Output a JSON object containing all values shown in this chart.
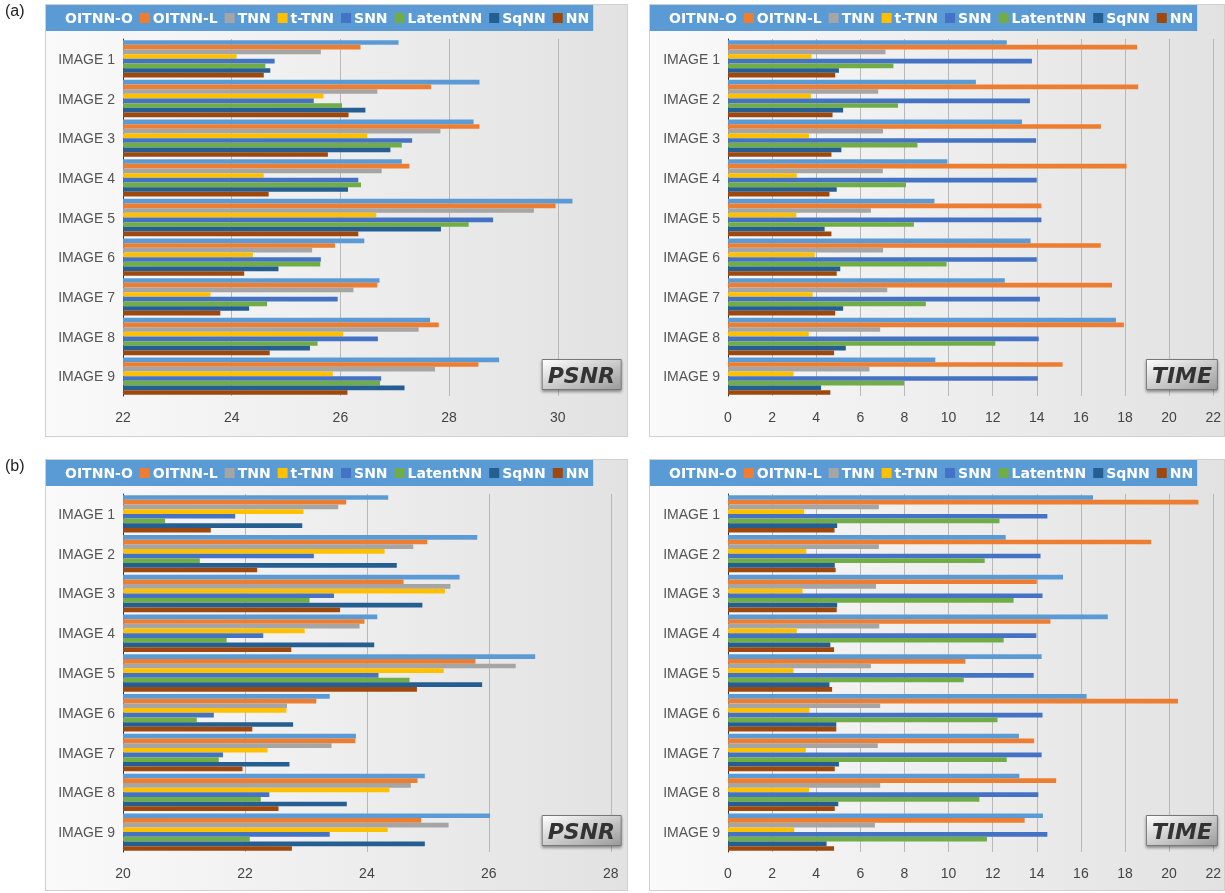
{
  "chart_data": [
    {
      "type": "bar",
      "orientation": "horizontal",
      "title": "PSNR",
      "annotations": [
        "(a)"
      ],
      "legend": "top",
      "grid": "x",
      "xlim": [
        22,
        31.2
      ],
      "xticks": [
        22,
        24,
        26,
        28,
        30
      ],
      "categories": [
        "IMAGE 1",
        "IMAGE 2",
        "IMAGE 3",
        "IMAGE 4",
        "IMAGE 5",
        "IMAGE 6",
        "IMAGE 7",
        "IMAGE 8",
        "IMAGE 9"
      ],
      "series": [
        {
          "name": "OITNN-O",
          "color": "#5b9bd5",
          "values": [
            27.07,
            28.56,
            28.45,
            27.13,
            30.27,
            26.44,
            26.72,
            27.65,
            28.92
          ]
        },
        {
          "name": "OITNN-L",
          "color": "#ed7d31",
          "values": [
            26.37,
            27.67,
            28.56,
            27.27,
            29.96,
            25.9,
            26.68,
            27.81,
            28.54
          ]
        },
        {
          "name": "TNN",
          "color": "#a5a5a5",
          "values": [
            25.64,
            26.68,
            27.84,
            26.76,
            29.56,
            25.48,
            26.24,
            27.44,
            27.74
          ]
        },
        {
          "name": "t-TNN",
          "color": "#ffc000",
          "values": [
            24.09,
            25.69,
            26.49,
            24.59,
            26.66,
            24.39,
            23.61,
            26.05,
            25.86
          ]
        },
        {
          "name": "SNN",
          "color": "#4472c4",
          "values": [
            24.79,
            25.51,
            27.32,
            26.33,
            28.81,
            25.64,
            25.95,
            26.69,
            26.75
          ]
        },
        {
          "name": "LatentNN",
          "color": "#70ad47",
          "values": [
            24.62,
            26.03,
            27.13,
            26.38,
            28.36,
            25.63,
            24.65,
            25.58,
            26.73
          ]
        },
        {
          "name": "SqNN",
          "color": "#255e91",
          "values": [
            24.71,
            26.46,
            26.92,
            26.14,
            27.85,
            24.86,
            24.32,
            25.44,
            27.18
          ]
        },
        {
          "name": "NN",
          "color": "#9e480e",
          "values": [
            24.59,
            26.15,
            25.77,
            24.68,
            26.33,
            24.23,
            23.79,
            24.7,
            26.13
          ]
        }
      ]
    },
    {
      "type": "bar",
      "orientation": "horizontal",
      "title": "TIME",
      "legend": "top",
      "grid": "x",
      "xlim": [
        0,
        22
      ],
      "xticks": [
        0,
        2,
        4,
        6,
        8,
        10,
        12,
        14,
        16,
        18,
        20,
        22
      ],
      "categories": [
        "IMAGE 1",
        "IMAGE 2",
        "IMAGE 3",
        "IMAGE 4",
        "IMAGE 5",
        "IMAGE 6",
        "IMAGE 7",
        "IMAGE 8",
        "IMAGE 9"
      ],
      "series": [
        {
          "name": "OITNN-O",
          "color": "#5b9bd5",
          "values": [
            12.64,
            11.24,
            13.33,
            9.95,
            9.36,
            13.72,
            12.55,
            17.59,
            9.4
          ]
        },
        {
          "name": "OITNN-L",
          "color": "#ed7d31",
          "values": [
            18.55,
            18.6,
            16.91,
            18.07,
            14.21,
            16.9,
            17.41,
            17.95,
            15.17
          ]
        },
        {
          "name": "TNN",
          "color": "#a5a5a5",
          "values": [
            7.14,
            6.81,
            7.03,
            7.02,
            6.48,
            7.03,
            7.22,
            6.9,
            6.41
          ]
        },
        {
          "name": "t-TNN",
          "color": "#ffc000",
          "values": [
            3.79,
            3.76,
            3.67,
            3.12,
            3.1,
            3.93,
            3.84,
            3.66,
            2.97
          ]
        },
        {
          "name": "SNN",
          "color": "#4472c4",
          "values": [
            13.78,
            13.69,
            13.97,
            14.0,
            14.21,
            14.0,
            14.14,
            14.09,
            14.05
          ]
        },
        {
          "name": "LatentNN",
          "color": "#70ad47",
          "values": [
            7.5,
            7.71,
            8.59,
            8.07,
            8.43,
            9.91,
            8.97,
            12.12,
            7.98
          ]
        },
        {
          "name": "SqNN",
          "color": "#255e91",
          "values": [
            5.03,
            5.22,
            5.14,
            4.93,
            4.38,
            5.09,
            5.22,
            5.34,
            4.22
          ]
        },
        {
          "name": "NN",
          "color": "#9e480e",
          "values": [
            4.86,
            4.74,
            4.69,
            4.6,
            4.69,
            4.93,
            4.86,
            4.81,
            4.64
          ]
        }
      ]
    },
    {
      "type": "bar",
      "orientation": "horizontal",
      "title": "PSNR",
      "annotations": [
        "(b)"
      ],
      "legend": "top",
      "grid": "x",
      "xlim": [
        20,
        28.2
      ],
      "xticks": [
        20,
        22,
        24,
        26,
        28
      ],
      "categories": [
        "IMAGE 1",
        "IMAGE 2",
        "IMAGE 3",
        "IMAGE 4",
        "IMAGE 5",
        "IMAGE 6",
        "IMAGE 7",
        "IMAGE 8",
        "IMAGE 9"
      ],
      "series": [
        {
          "name": "OITNN-O",
          "color": "#5b9bd5",
          "values": [
            24.35,
            25.81,
            25.52,
            24.17,
            26.76,
            23.39,
            23.82,
            24.95,
            26.02
          ]
        },
        {
          "name": "OITNN-L",
          "color": "#ed7d31",
          "values": [
            23.66,
            24.99,
            24.6,
            23.96,
            25.78,
            23.17,
            23.81,
            24.83,
            24.89
          ]
        },
        {
          "name": "TNN",
          "color": "#a5a5a5",
          "values": [
            23.53,
            24.76,
            25.37,
            23.88,
            26.44,
            22.69,
            23.42,
            24.72,
            25.34
          ]
        },
        {
          "name": "t-TNN",
          "color": "#ffc000",
          "values": [
            22.96,
            24.29,
            25.28,
            22.98,
            25.26,
            22.68,
            22.37,
            24.37,
            24.34
          ]
        },
        {
          "name": "SNN",
          "color": "#4472c4",
          "values": [
            21.84,
            23.13,
            23.46,
            22.3,
            24.19,
            21.49,
            21.64,
            22.4,
            23.39
          ]
        },
        {
          "name": "LatentNN",
          "color": "#70ad47",
          "values": [
            20.69,
            21.26,
            23.06,
            21.7,
            24.7,
            21.21,
            21.57,
            22.26,
            22.08
          ]
        },
        {
          "name": "SqNN",
          "color": "#255e91",
          "values": [
            22.94,
            24.49,
            24.91,
            24.12,
            25.89,
            22.79,
            22.73,
            23.67,
            24.95
          ]
        },
        {
          "name": "NN",
          "color": "#9e480e",
          "values": [
            21.44,
            22.2,
            23.56,
            22.76,
            24.82,
            22.12,
            21.96,
            22.55,
            22.77
          ]
        }
      ]
    },
    {
      "type": "bar",
      "orientation": "horizontal",
      "title": "TIME",
      "legend": "top",
      "grid": "x",
      "xlim": [
        0,
        22
      ],
      "xticks": [
        0,
        2,
        4,
        6,
        8,
        10,
        12,
        14,
        16,
        18,
        20,
        22
      ],
      "categories": [
        "IMAGE 1",
        "IMAGE 2",
        "IMAGE 3",
        "IMAGE 4",
        "IMAGE 5",
        "IMAGE 6",
        "IMAGE 7",
        "IMAGE 8",
        "IMAGE 9"
      ],
      "series": [
        {
          "name": "OITNN-O",
          "color": "#5b9bd5",
          "values": [
            16.55,
            12.59,
            15.19,
            17.22,
            14.22,
            16.26,
            13.19,
            13.21,
            14.28
          ]
        },
        {
          "name": "OITNN-L",
          "color": "#ed7d31",
          "values": [
            21.33,
            19.19,
            14.0,
            14.62,
            10.76,
            20.4,
            13.88,
            14.88,
            13.45
          ]
        },
        {
          "name": "TNN",
          "color": "#a5a5a5",
          "values": [
            6.84,
            6.84,
            6.71,
            6.86,
            6.48,
            6.9,
            6.79,
            6.9,
            6.66
          ]
        },
        {
          "name": "t-TNN",
          "color": "#ffc000",
          "values": [
            3.45,
            3.55,
            3.38,
            3.12,
            2.97,
            3.69,
            3.53,
            3.67,
            3.0
          ]
        },
        {
          "name": "SNN",
          "color": "#4472c4",
          "values": [
            14.48,
            14.17,
            14.26,
            13.98,
            13.86,
            14.26,
            14.22,
            14.07,
            14.48
          ]
        },
        {
          "name": "LatentNN",
          "color": "#70ad47",
          "values": [
            12.31,
            11.64,
            12.95,
            12.5,
            10.69,
            12.22,
            12.64,
            11.4,
            11.74
          ]
        },
        {
          "name": "SqNN",
          "color": "#255e91",
          "values": [
            4.95,
            4.84,
            4.95,
            4.64,
            4.6,
            4.91,
            5.03,
            5.0,
            4.47
          ]
        },
        {
          "name": "NN",
          "color": "#9e480e",
          "values": [
            4.83,
            4.88,
            4.93,
            4.81,
            4.72,
            4.91,
            4.84,
            4.84,
            4.81
          ]
        }
      ]
    }
  ]
}
